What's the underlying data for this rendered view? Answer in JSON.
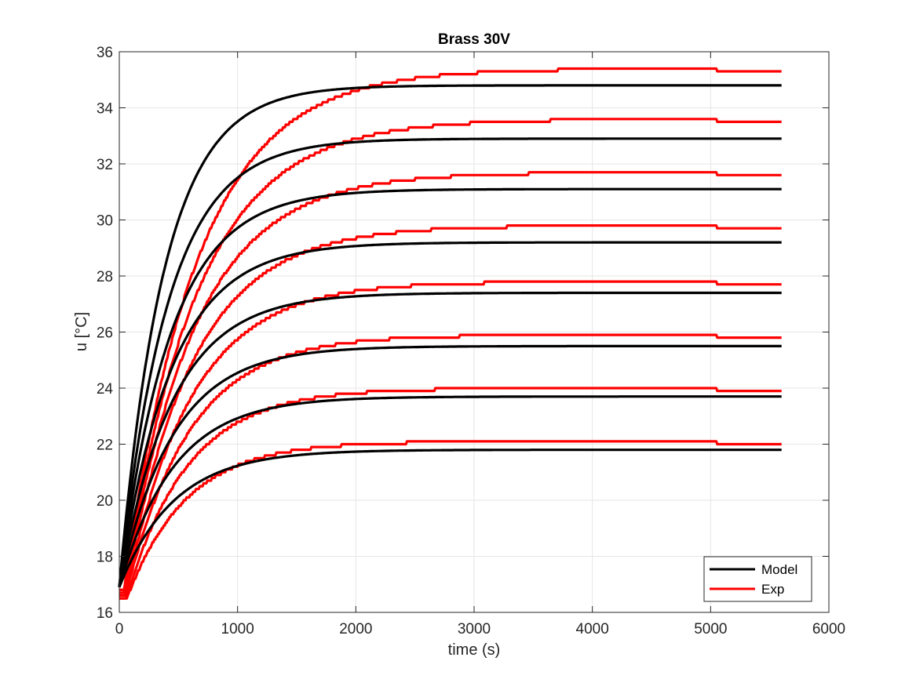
{
  "chart_data": {
    "type": "line",
    "title": "Brass 30V",
    "xlabel": "time (s)",
    "ylabel": "u [°C]",
    "xlim": [
      0,
      6000
    ],
    "ylim": [
      16,
      36
    ],
    "xticks": [
      0,
      1000,
      2000,
      3000,
      4000,
      5000,
      6000
    ],
    "yticks": [
      16,
      18,
      20,
      22,
      24,
      26,
      28,
      30,
      32,
      34,
      36
    ],
    "grid": true,
    "legend_position": "bottom-right",
    "legend": [
      "Model",
      "Exp"
    ],
    "colors": {
      "Model": "#000000",
      "Exp": "#ff0000"
    },
    "x_end": 5600,
    "model_series": [
      {
        "start": 16.9,
        "final": 34.8,
        "tau": 380
      },
      {
        "start": 16.9,
        "final": 32.9,
        "tau": 410
      },
      {
        "start": 16.9,
        "final": 31.1,
        "tau": 430
      },
      {
        "start": 16.9,
        "final": 29.2,
        "tau": 440
      },
      {
        "start": 16.9,
        "final": 27.4,
        "tau": 450
      },
      {
        "start": 16.9,
        "final": 25.5,
        "tau": 455
      },
      {
        "start": 16.9,
        "final": 23.7,
        "tau": 460
      },
      {
        "start": 16.9,
        "final": 21.8,
        "tau": 465
      }
    ],
    "exp_series": [
      {
        "start": 16.8,
        "final": 35.4,
        "end": 35.3,
        "tau": 620,
        "delay": 40
      },
      {
        "start": 16.8,
        "final": 33.6,
        "end": 33.5,
        "tau": 620,
        "delay": 40
      },
      {
        "start": 16.7,
        "final": 31.7,
        "end": 31.6,
        "tau": 600,
        "delay": 40
      },
      {
        "start": 16.7,
        "final": 29.8,
        "end": 29.7,
        "tau": 580,
        "delay": 45
      },
      {
        "start": 16.6,
        "final": 27.8,
        "end": 27.7,
        "tau": 560,
        "delay": 50
      },
      {
        "start": 16.6,
        "final": 25.9,
        "end": 25.8,
        "tau": 540,
        "delay": 55
      },
      {
        "start": 16.5,
        "final": 24.0,
        "end": 23.9,
        "tau": 520,
        "delay": 60
      },
      {
        "start": 16.5,
        "final": 22.1,
        "end": 22.0,
        "tau": 500,
        "delay": 65
      }
    ]
  }
}
